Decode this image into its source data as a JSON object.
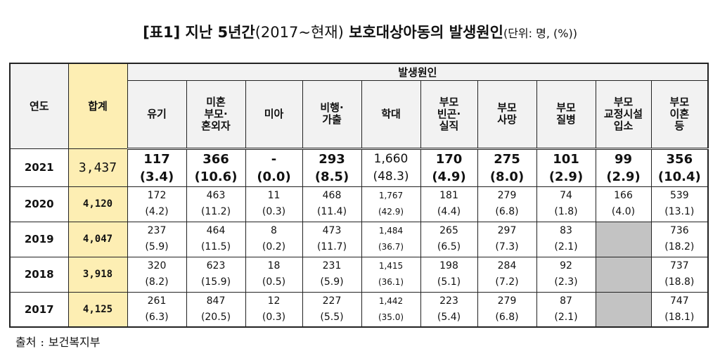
{
  "title": {
    "bracket": "[표1]",
    "text_a": "지난 5년간",
    "text_b": "(2017~현재)",
    "text_c": "보호대상아동의 발생원인",
    "unit": "(단위: 명, (%))"
  },
  "table": {
    "col_year": "연도",
    "col_total": "합계",
    "group_header": "발생원인",
    "causes": [
      {
        "line1": "유기",
        "line2": ""
      },
      {
        "line1": "미혼",
        "line2": "부모·",
        "line3": "혼외자"
      },
      {
        "line1": "미아",
        "line2": ""
      },
      {
        "line1": "비행·",
        "line2": "가출"
      },
      {
        "line1": "학대",
        "line2": ""
      },
      {
        "line1": "부모",
        "line2": "빈곤·",
        "line3": "실직"
      },
      {
        "line1": "부모",
        "line2": "사망"
      },
      {
        "line1": "부모",
        "line2": "질병"
      },
      {
        "line1": "부모",
        "line2": "교정시설",
        "line3": "입소"
      },
      {
        "line1": "부모",
        "line2": "이혼",
        "line3": "등"
      }
    ],
    "rows": [
      {
        "year": "2021",
        "total": "3,437",
        "cells": [
          {
            "n": "117",
            "p": "(3.4)"
          },
          {
            "n": "366",
            "p": "(10.6)"
          },
          {
            "n": "-",
            "p": "(0.0)"
          },
          {
            "n": "293",
            "p": "(8.5)"
          },
          {
            "n": "1,660",
            "p": "(48.3)"
          },
          {
            "n": "170",
            "p": "(4.9)"
          },
          {
            "n": "275",
            "p": "(8.0)"
          },
          {
            "n": "101",
            "p": "(2.9)"
          },
          {
            "n": "99",
            "p": "(2.9)"
          },
          {
            "n": "356",
            "p": "(10.4)"
          }
        ]
      },
      {
        "year": "2020",
        "total": "4,120",
        "cells": [
          {
            "n": "172",
            "p": "(4.2)"
          },
          {
            "n": "463",
            "p": "(11.2)"
          },
          {
            "n": "11",
            "p": "(0.3)"
          },
          {
            "n": "468",
            "p": "(11.4)"
          },
          {
            "n": "1,767",
            "p": "(42.9)"
          },
          {
            "n": "181",
            "p": "(4.4)"
          },
          {
            "n": "279",
            "p": "(6.8)"
          },
          {
            "n": "74",
            "p": "(1.8)"
          },
          {
            "n": "166",
            "p": "(4.0)"
          },
          {
            "n": "539",
            "p": "(13.1)"
          }
        ]
      },
      {
        "year": "2019",
        "total": "4,047",
        "cells": [
          {
            "n": "237",
            "p": "(5.9)"
          },
          {
            "n": "464",
            "p": "(11.5)"
          },
          {
            "n": "8",
            "p": "(0.2)"
          },
          {
            "n": "473",
            "p": "(11.7)"
          },
          {
            "n": "1,484",
            "p": "(36.7)"
          },
          {
            "n": "265",
            "p": "(6.5)"
          },
          {
            "n": "297",
            "p": "(7.3)"
          },
          {
            "n": "83",
            "p": "(2.1)"
          },
          null,
          {
            "n": "736",
            "p": "(18.2)"
          }
        ]
      },
      {
        "year": "2018",
        "total": "3,918",
        "cells": [
          {
            "n": "320",
            "p": "(8.2)"
          },
          {
            "n": "623",
            "p": "(15.9)"
          },
          {
            "n": "18",
            "p": "(0.5)"
          },
          {
            "n": "231",
            "p": "(5.9)"
          },
          {
            "n": "1,415",
            "p": "(36.1)"
          },
          {
            "n": "198",
            "p": "(5.1)"
          },
          {
            "n": "284",
            "p": "(7.2)"
          },
          {
            "n": "92",
            "p": "(2.3)"
          },
          null,
          {
            "n": "737",
            "p": "(18.8)"
          }
        ]
      },
      {
        "year": "2017",
        "total": "4,125",
        "cells": [
          {
            "n": "261",
            "p": "(6.3)"
          },
          {
            "n": "847",
            "p": "(20.5)"
          },
          {
            "n": "12",
            "p": "(0.3)"
          },
          {
            "n": "227",
            "p": "(5.5)"
          },
          {
            "n": "1,442",
            "p": "(35.0)"
          },
          {
            "n": "223",
            "p": "(5.4)"
          },
          {
            "n": "279",
            "p": "(6.8)"
          },
          {
            "n": "87",
            "p": "(2.1)"
          },
          null,
          {
            "n": "747",
            "p": "(18.1)"
          }
        ]
      }
    ],
    "colors": {
      "total_bg": "#fdeeb3",
      "header_bg": "#f2f2f2",
      "empty_bg": "#c3c3c3"
    }
  },
  "source": {
    "label": "출처",
    "separator": ":",
    "text": "보건복지부"
  }
}
